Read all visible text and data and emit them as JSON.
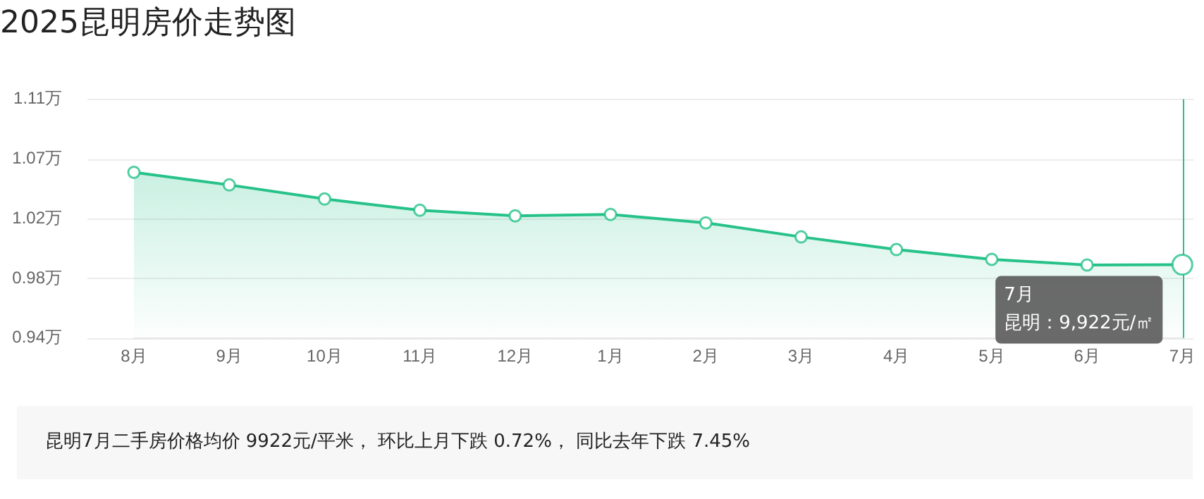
{
  "chart_data": {
    "type": "area",
    "title": "2025昆明房价走势图",
    "categories": [
      "8月",
      "9月",
      "10月",
      "11月",
      "12月",
      "1月",
      "2月",
      "3月",
      "4月",
      "5月",
      "6月",
      "7月"
    ],
    "series": [
      {
        "color": "#27c28a",
        "values": [
          1.058,
          1.049,
          1.039,
          1.031,
          1.027,
          1.028,
          1.022,
          1.012,
          1.003,
          0.996,
          0.992,
          0.9922
        ]
      }
    ],
    "ylim": [
      0.94,
      1.11
    ],
    "yticks": [
      {
        "value": 0.94,
        "label": "0.94万"
      },
      {
        "value": 0.9825,
        "label": "0.98万"
      },
      {
        "value": 1.025,
        "label": "1.02万"
      },
      {
        "value": 1.0675,
        "label": "1.07万"
      },
      {
        "value": 1.11,
        "label": "1.11万"
      }
    ],
    "grid": "y",
    "legend": false,
    "marker": "circle",
    "line_style": "solid",
    "ref_lines": [
      {
        "axis": "x",
        "value": "7月",
        "color": "#27c28a"
      }
    ],
    "annotations": [
      "7月",
      "昆明：9,922元/㎡",
      "昆明7月二手房价格均价 9922元/平米， 环比上月下跌 0.72%， 同比去年下跌 7.45%"
    ]
  }
}
